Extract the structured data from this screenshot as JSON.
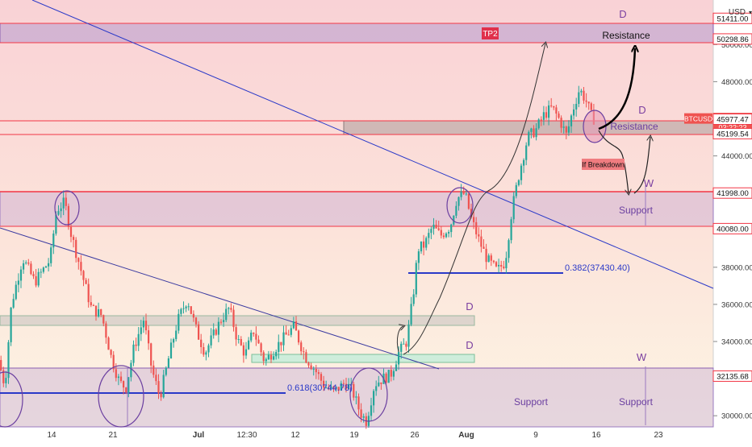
{
  "header": {
    "currency": "USD"
  },
  "colors": {
    "up": "#26a69a",
    "down": "#ef5350",
    "price_tag": "#ef5350",
    "resistance_line": "#f23645",
    "trendline": "#2a39c8",
    "purple": "#7b3fa0",
    "zone_purple": "#b79ad0",
    "zone_green": "#c6ecd9",
    "zone_grey": "#b9b9b9",
    "tp_badge": "#e0304b"
  },
  "chart_data": {
    "type": "candlestick",
    "symbol": "BTCUSD",
    "current_price": 46015.72,
    "countdown": "03:22:23",
    "ylim": [
      29400,
      52400
    ],
    "y_ticks": [
      30000,
      32000,
      34000,
      36000,
      38000,
      40000,
      42000,
      44000,
      46000,
      48000,
      50000
    ],
    "x_ticks": [
      "14",
      "21",
      "Jul",
      "12:30",
      "12",
      "19",
      "26",
      "Aug",
      "9",
      "16",
      "23"
    ],
    "x_tick_pos": [
      64,
      140,
      246,
      306,
      366,
      439,
      514,
      578,
      664,
      739,
      816
    ],
    "price_labels": [
      {
        "text": "51411.00",
        "value": 51411,
        "style": "white"
      },
      {
        "text": "50298.86",
        "value": 50298.86,
        "style": "white"
      },
      {
        "text": "46015.72",
        "value": 46015.72,
        "style": "tag"
      },
      {
        "text": "45977.47",
        "value": 45977.47,
        "style": "white"
      },
      {
        "text": "45199.54",
        "value": 45199.54,
        "style": "white"
      },
      {
        "text": "41998.00",
        "value": 41998,
        "style": "white"
      },
      {
        "text": "40080.00",
        "value": 40080,
        "style": "white"
      },
      {
        "text": "32135.68",
        "value": 32135.68,
        "style": "white"
      }
    ],
    "fib_levels": [
      {
        "label": "0.618(30744.78)",
        "value": 30744.78
      },
      {
        "label": "0.382(37430.40)",
        "value": 37430.4
      }
    ],
    "annotations": {
      "tp": "TP2",
      "resistance": "Resistance",
      "support": "Support",
      "breakdown": "If Breakdown",
      "d": "D",
      "w": "W"
    },
    "anchors": [
      [
        0,
        33000
      ],
      [
        8,
        31600
      ],
      [
        16,
        36000
      ],
      [
        30,
        38500
      ],
      [
        45,
        37200
      ],
      [
        64,
        38400
      ],
      [
        72,
        41100
      ],
      [
        82,
        41500
      ],
      [
        90,
        39800
      ],
      [
        100,
        38200
      ],
      [
        115,
        35800
      ],
      [
        128,
        35400
      ],
      [
        140,
        33100
      ],
      [
        150,
        31800
      ],
      [
        158,
        31500
      ],
      [
        168,
        33700
      ],
      [
        180,
        35200
      ],
      [
        190,
        32500
      ],
      [
        200,
        31000
      ],
      [
        212,
        33300
      ],
      [
        222,
        35100
      ],
      [
        234,
        36300
      ],
      [
        246,
        34500
      ],
      [
        256,
        33400
      ],
      [
        266,
        34300
      ],
      [
        276,
        35200
      ],
      [
        286,
        35800
      ],
      [
        296,
        34100
      ],
      [
        306,
        33300
      ],
      [
        316,
        34600
      ],
      [
        330,
        32900
      ],
      [
        344,
        33700
      ],
      [
        358,
        34400
      ],
      [
        366,
        34800
      ],
      [
        380,
        33200
      ],
      [
        392,
        32500
      ],
      [
        404,
        31600
      ],
      [
        416,
        31300
      ],
      [
        430,
        31800
      ],
      [
        439,
        31300
      ],
      [
        448,
        30200
      ],
      [
        456,
        29700
      ],
      [
        466,
        31700
      ],
      [
        476,
        32000
      ],
      [
        486,
        32200
      ],
      [
        496,
        33400
      ],
      [
        506,
        34000
      ],
      [
        514,
        36500
      ],
      [
        520,
        39000
      ],
      [
        528,
        39200
      ],
      [
        538,
        40200
      ],
      [
        548,
        39700
      ],
      [
        560,
        40200
      ],
      [
        568,
        41700
      ],
      [
        578,
        42000
      ],
      [
        586,
        40600
      ],
      [
        596,
        39400
      ],
      [
        606,
        38400
      ],
      [
        618,
        37800
      ],
      [
        628,
        38300
      ],
      [
        636,
        41000
      ],
      [
        646,
        43200
      ],
      [
        656,
        45000
      ],
      [
        666,
        45400
      ],
      [
        676,
        46200
      ],
      [
        686,
        46600
      ],
      [
        696,
        45900
      ],
      [
        704,
        45100
      ],
      [
        712,
        46500
      ],
      [
        720,
        47600
      ],
      [
        728,
        47000
      ],
      [
        736,
        46000
      ]
    ]
  }
}
